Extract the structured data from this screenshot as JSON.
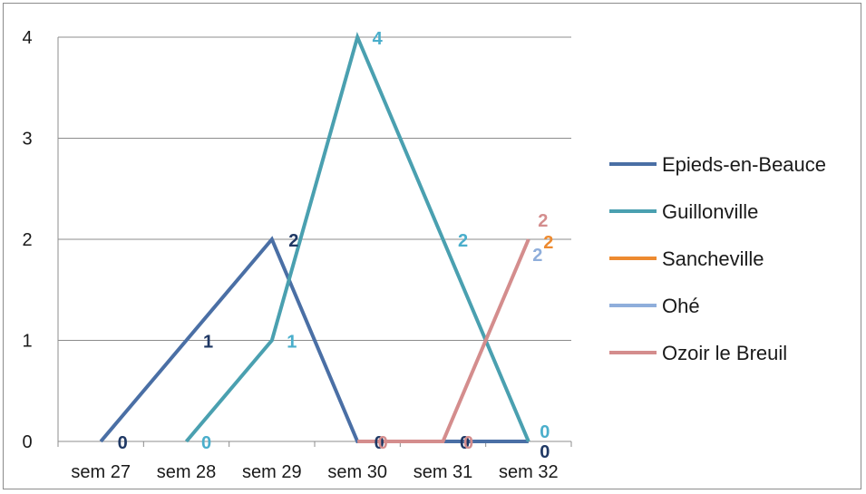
{
  "chart_data": {
    "type": "line",
    "categories": [
      "sem 27",
      "sem 28",
      "sem 29",
      "sem 30",
      "sem 31",
      "sem 32"
    ],
    "ylim": [
      0,
      4
    ],
    "yticks": [
      0,
      1,
      2,
      3,
      4
    ],
    "grid": true,
    "legend_position": "right",
    "series": [
      {
        "name": "Epieds-en-Beauce",
        "color": "#4a6fa5",
        "labelColor": "#1f3864",
        "values": [
          0,
          1,
          2,
          0,
          0,
          0
        ]
      },
      {
        "name": "Guillonville",
        "color": "#4aa0b0",
        "labelColor": "#4aaecb",
        "values": [
          null,
          0,
          1,
          4,
          2,
          0
        ]
      },
      {
        "name": "Sancheville",
        "color": "#ed8a30",
        "labelColor": "#ed8a30",
        "values": [
          null,
          null,
          null,
          null,
          null,
          2
        ]
      },
      {
        "name": "Ohé",
        "color": "#8faedb",
        "labelColor": "#8faedb",
        "values": [
          null,
          null,
          null,
          null,
          null,
          2
        ]
      },
      {
        "name": "Ozoir le Breuil",
        "color": "#d48d8d",
        "labelColor": "#d48d8d",
        "values": [
          null,
          null,
          null,
          0,
          0,
          2
        ]
      }
    ]
  }
}
